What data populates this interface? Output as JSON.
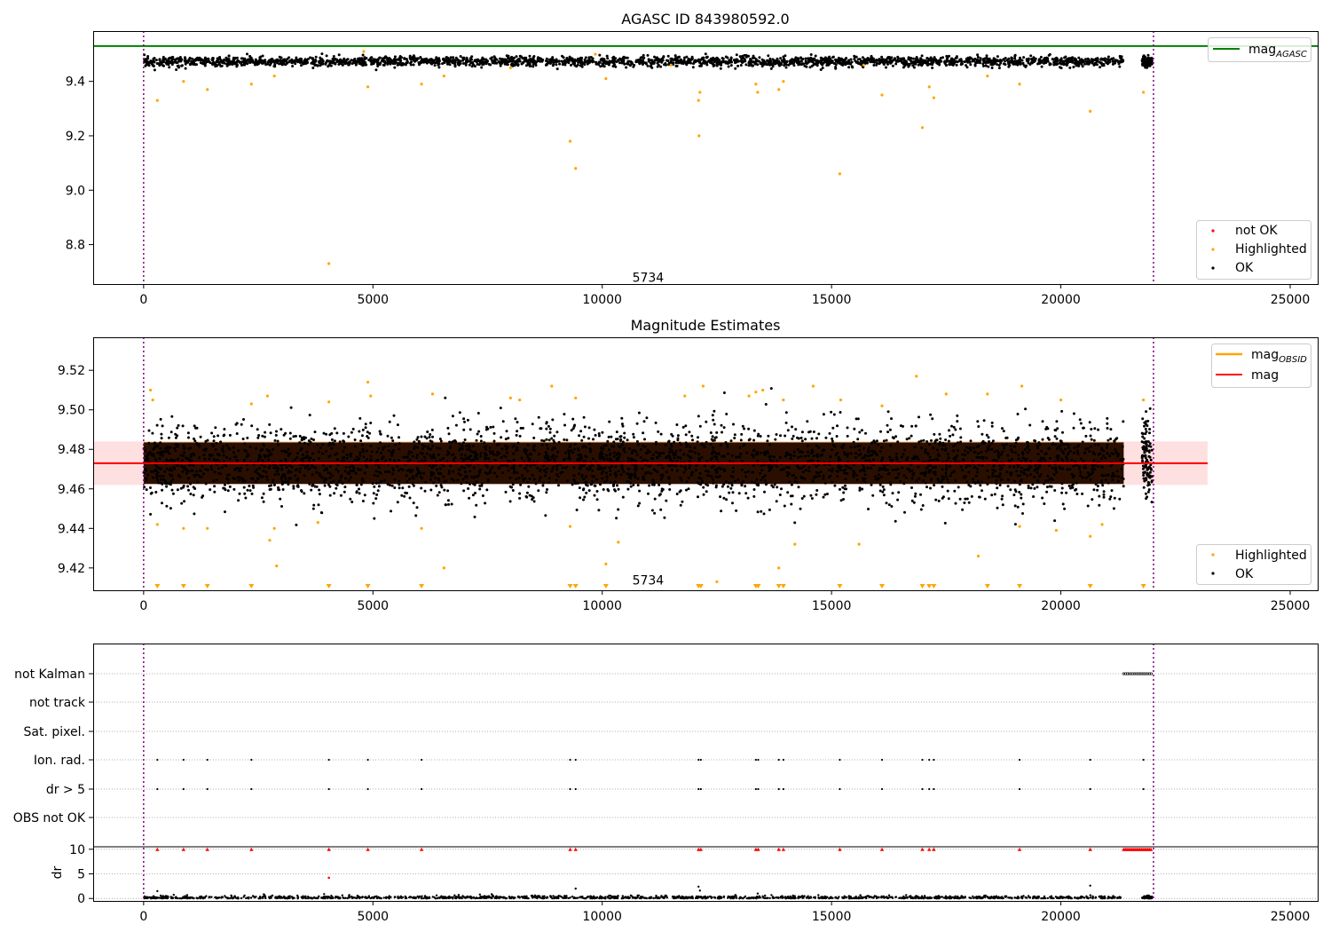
{
  "chart_data": [
    {
      "type": "scatter",
      "title": "AGASC ID 843980592.0",
      "xlim": [
        -1100,
        25600
      ],
      "ylim": [
        8.655,
        9.585
      ],
      "xticks": [
        0,
        5000,
        10000,
        15000,
        20000,
        25000
      ],
      "yticks": [
        8.8,
        9.0,
        9.2,
        9.4
      ],
      "xtick_labels": [
        "0",
        "5000",
        "10000",
        "15000",
        "20000",
        "25000"
      ],
      "ytick_labels": [
        "8.8",
        "9.0",
        "9.2",
        "9.4"
      ],
      "vlines": [
        0,
        22020
      ],
      "hline": {
        "name": "mag_AGASC",
        "value": 9.53,
        "color": "#008000"
      },
      "annotation": {
        "text": "5734",
        "x": 11000,
        "y": 8.68
      },
      "ok_band": {
        "x_start": 0,
        "x_end": 21370,
        "x2_start": 21770,
        "x2_end": 21990,
        "center": 9.473,
        "spread": 0.027
      },
      "highlighted": [
        [
          300,
          9.33
        ],
        [
          870,
          9.4
        ],
        [
          1390,
          9.37
        ],
        [
          2350,
          9.39
        ],
        [
          2850,
          9.42
        ],
        [
          4040,
          8.73
        ],
        [
          4890,
          9.38
        ],
        [
          6060,
          9.39
        ],
        [
          6550,
          9.42
        ],
        [
          9300,
          9.18
        ],
        [
          9420,
          9.08
        ],
        [
          10080,
          9.41
        ],
        [
          12100,
          9.33
        ],
        [
          12130,
          9.36
        ],
        [
          12110,
          9.2
        ],
        [
          13350,
          9.39
        ],
        [
          13390,
          9.36
        ],
        [
          13850,
          9.37
        ],
        [
          13950,
          9.4
        ],
        [
          15180,
          9.06
        ],
        [
          16100,
          9.35
        ],
        [
          16980,
          9.23
        ],
        [
          17130,
          9.38
        ],
        [
          17230,
          9.34
        ],
        [
          18400,
          9.42
        ],
        [
          19100,
          9.39
        ],
        [
          20640,
          9.29
        ],
        [
          21800,
          9.36
        ],
        [
          8000,
          9.45
        ],
        [
          11500,
          9.46
        ],
        [
          4800,
          9.51
        ],
        [
          9850,
          9.5
        ],
        [
          15700,
          9.46
        ]
      ],
      "legend": [
        "not OK",
        "Highlighted",
        "OK"
      ],
      "legend_placement": "lower-right",
      "colors": {
        "ok": "#000000",
        "highlighted": "#ffa500",
        "not_ok": "#ff0000",
        "vline": "#800080"
      }
    },
    {
      "type": "scatter",
      "title": "Magnitude Estimates",
      "xlim": [
        -1100,
        25600
      ],
      "ylim": [
        9.4087,
        9.5367
      ],
      "xticks": [
        0,
        5000,
        10000,
        15000,
        20000,
        25000
      ],
      "yticks": [
        9.42,
        9.44,
        9.46,
        9.48,
        9.5,
        9.52
      ],
      "xtick_labels": [
        "0",
        "5000",
        "10000",
        "15000",
        "20000",
        "25000"
      ],
      "ytick_labels": [
        "9.42",
        "9.44",
        "9.46",
        "9.48",
        "9.50",
        "9.52"
      ],
      "vlines": [
        0,
        22020
      ],
      "mag_line": {
        "name": "mag",
        "value": 9.473,
        "x_start": -1100,
        "x_end": 23200,
        "color": "#ff0000"
      },
      "mag_band": {
        "low": 9.462,
        "high": 9.484,
        "x_start": -1100,
        "x_end": 23200
      },
      "obsid_band": {
        "low": 9.463,
        "high": 9.484,
        "x_start": 0,
        "x_end": 21370
      },
      "annotation": {
        "text": "5734",
        "x": 11000,
        "y": 9.413
      },
      "highlighted": [
        [
          150,
          9.51
        ],
        [
          200,
          9.505
        ],
        [
          300,
          9.442
        ],
        [
          870,
          9.44
        ],
        [
          1390,
          9.44
        ],
        [
          2350,
          9.503
        ],
        [
          2700,
          9.507
        ],
        [
          2750,
          9.434
        ],
        [
          2850,
          9.44
        ],
        [
          2900,
          9.421
        ],
        [
          3800,
          9.443
        ],
        [
          4040,
          9.504
        ],
        [
          4890,
          9.514
        ],
        [
          4950,
          9.507
        ],
        [
          6060,
          9.44
        ],
        [
          6300,
          9.508
        ],
        [
          6550,
          9.42
        ],
        [
          8000,
          9.506
        ],
        [
          8200,
          9.505
        ],
        [
          8900,
          9.512
        ],
        [
          9300,
          9.441
        ],
        [
          9420,
          9.506
        ],
        [
          10080,
          9.422
        ],
        [
          10350,
          9.433
        ],
        [
          11800,
          9.507
        ],
        [
          12200,
          9.512
        ],
        [
          12500,
          9.413
        ],
        [
          13200,
          9.507
        ],
        [
          13350,
          9.509
        ],
        [
          13500,
          9.51
        ],
        [
          13850,
          9.42
        ],
        [
          13950,
          9.505
        ],
        [
          14200,
          9.432
        ],
        [
          14600,
          9.512
        ],
        [
          15200,
          9.505
        ],
        [
          15600,
          9.432
        ],
        [
          16100,
          9.502
        ],
        [
          16850,
          9.517
        ],
        [
          17500,
          9.508
        ],
        [
          18200,
          9.426
        ],
        [
          18400,
          9.508
        ],
        [
          19100,
          9.441
        ],
        [
          19150,
          9.512
        ],
        [
          19900,
          9.439
        ],
        [
          20000,
          9.505
        ],
        [
          20640,
          9.436
        ],
        [
          20900,
          9.442
        ],
        [
          21800,
          9.505
        ]
      ],
      "clipped_markers": [
        300,
        870,
        1390,
        2350,
        4040,
        4890,
        6060,
        9300,
        9420,
        10080,
        12100,
        12150,
        13350,
        13400,
        13850,
        13950,
        15180,
        16100,
        16980,
        17130,
        17230,
        18400,
        19100,
        20640,
        21800
      ],
      "ok_band": {
        "x_start": 0,
        "x_end": 21370,
        "x2_start": 21770,
        "x2_end": 21990,
        "center": 9.473,
        "spread": 0.027
      },
      "legend": [
        "Highlighted",
        "OK"
      ],
      "legend_placement": "lower-right",
      "colors": {
        "ok": "#000000",
        "highlighted": "#ffa500",
        "mag": "#ff0000",
        "obsid": "#ffa500",
        "vline": "#800080"
      }
    },
    {
      "type": "scatter",
      "xlim": [
        -1100,
        25600
      ],
      "flag_rows": [
        "not Kalman",
        "not track",
        "Sat. pixel.",
        "Ion. rad.",
        "dr > 5",
        "OBS not OK"
      ],
      "flag_points": {
        "not Kalman": {
          "dense_range": [
            21370,
            21990
          ]
        },
        "not track": {
          "points": []
        },
        "Sat. pixel.": {
          "points": []
        },
        "Ion. rad.": {
          "points": [
            300,
            870,
            1390,
            2350,
            4040,
            4890,
            6060,
            9300,
            9420,
            12100,
            12150,
            13350,
            13400,
            13850,
            13950,
            15180,
            16100,
            16980,
            17130,
            17230,
            19100,
            20640,
            21800
          ]
        },
        "dr > 5": {
          "points": [
            300,
            870,
            1390,
            2350,
            4040,
            4890,
            6060,
            9300,
            9420,
            12100,
            12150,
            13350,
            13400,
            13850,
            13950,
            15180,
            16100,
            16980,
            17130,
            17230,
            19100,
            20640,
            21800
          ]
        },
        "OBS not OK": {
          "points": []
        }
      },
      "dr": {
        "ylabel": "dr",
        "ylim": [
          -0.5,
          10.5
        ],
        "yticks": [
          0,
          5,
          10
        ],
        "ytick_labels": [
          "0",
          "5",
          "10"
        ],
        "clipped_red": [
          300,
          870,
          1390,
          2350,
          4040,
          4890,
          6060,
          9300,
          9420,
          12100,
          12150,
          13350,
          13400,
          13850,
          13950,
          15180,
          16100,
          16980,
          17130,
          17230,
          19100,
          20640
        ],
        "clipped_red_range": [
          21370,
          21990
        ],
        "red_points": [
          [
            4040,
            4.2
          ]
        ],
        "spikes": [
          [
            9420,
            2.0
          ],
          [
            12100,
            2.4
          ],
          [
            12130,
            1.6
          ],
          [
            20640,
            2.6
          ],
          [
            13390,
            1.0
          ],
          [
            300,
            1.5
          ]
        ]
      },
      "xticks": [
        0,
        5000,
        10000,
        15000,
        20000,
        25000
      ],
      "xtick_labels": [
        "0",
        "5000",
        "10000",
        "15000",
        "20000",
        "25000"
      ],
      "vlines": [
        0,
        22020
      ]
    }
  ],
  "legends": {
    "top_line": {
      "main": "mag",
      "sub": "AGASC"
    },
    "top_points": [
      "not OK",
      "Highlighted",
      "OK"
    ],
    "mid_lines": [
      {
        "main": "mag",
        "sub": "OBSID"
      },
      {
        "main": "mag",
        "sub": ""
      }
    ],
    "mid_points": [
      "Highlighted",
      "OK"
    ]
  }
}
